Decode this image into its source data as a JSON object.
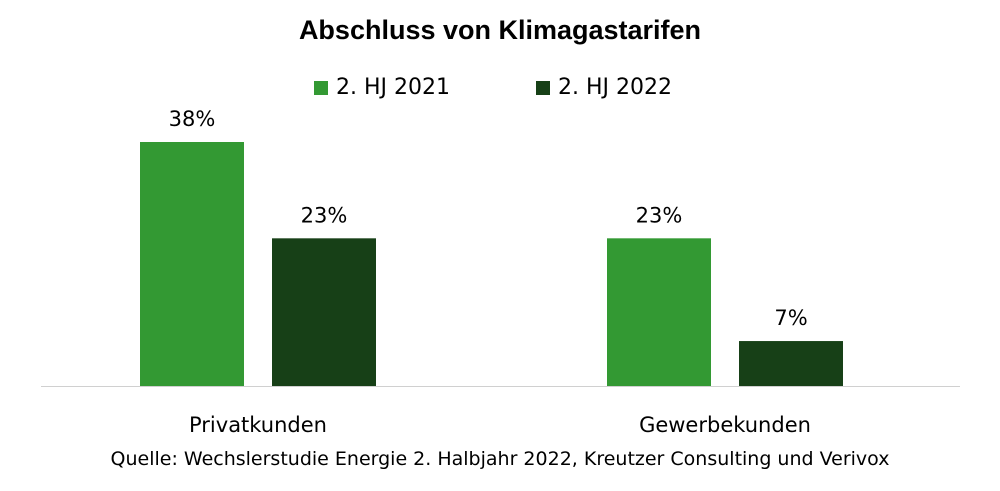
{
  "chart_data": {
    "type": "bar",
    "title": "Abschluss von Klimagastarifen",
    "categories": [
      "Privatkunden",
      "Gewerbekunden"
    ],
    "series": [
      {
        "name": "2. HJ 2021",
        "values": [
          38,
          23
        ],
        "labels": [
          "38%",
          "23%"
        ],
        "color": "#339933"
      },
      {
        "name": "2. HJ 2022",
        "values": [
          23,
          7
        ],
        "labels": [
          "23%",
          "7%"
        ],
        "color": "#174017"
      }
    ],
    "unit": "%",
    "ylim": [
      0,
      38
    ],
    "grid": false,
    "legend_position": "top"
  },
  "source": "Quelle: Wechslerstudie Energie 2. Halbjahr 2022, Kreutzer Consulting und Verivox"
}
